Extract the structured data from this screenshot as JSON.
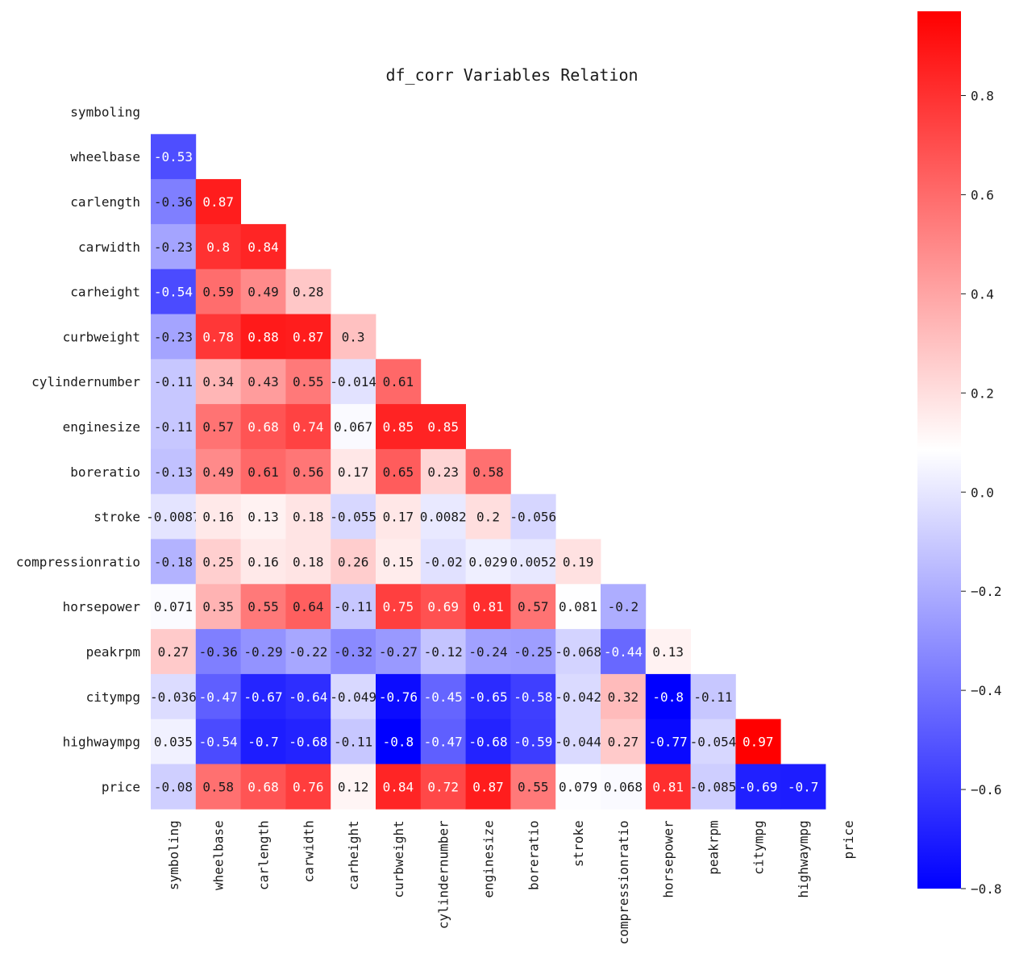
{
  "chart_data": {
    "type": "heatmap",
    "title": "df_corr Variables Relation",
    "variables": [
      "symboling",
      "wheelbase",
      "carlength",
      "carwidth",
      "carheight",
      "curbweight",
      "cylindernumber",
      "enginesize",
      "boreratio",
      "stroke",
      "compressionratio",
      "horsepower",
      "peakrpm",
      "citympg",
      "highwaympg",
      "price"
    ],
    "mask": "upper-triangle-including-diagonal",
    "lower_triangle": [
      [],
      [
        "-0.53"
      ],
      [
        "-0.36",
        "0.87"
      ],
      [
        "-0.23",
        "0.8",
        "0.84"
      ],
      [
        "-0.54",
        "0.59",
        "0.49",
        "0.28"
      ],
      [
        "-0.23",
        "0.78",
        "0.88",
        "0.87",
        "0.3"
      ],
      [
        "-0.11",
        "0.34",
        "0.43",
        "0.55",
        "-0.014",
        "0.61"
      ],
      [
        "-0.11",
        "0.57",
        "0.68",
        "0.74",
        "0.067",
        "0.85",
        "0.85"
      ],
      [
        "-0.13",
        "0.49",
        "0.61",
        "0.56",
        "0.17",
        "0.65",
        "0.23",
        "0.58"
      ],
      [
        "-0.0087",
        "0.16",
        "0.13",
        "0.18",
        "-0.055",
        "0.17",
        "0.0082",
        "0.2",
        "-0.056"
      ],
      [
        "-0.18",
        "0.25",
        "0.16",
        "0.18",
        "0.26",
        "0.15",
        "-0.02",
        "0.029",
        "0.0052",
        "0.19"
      ],
      [
        "0.071",
        "0.35",
        "0.55",
        "0.64",
        "-0.11",
        "0.75",
        "0.69",
        "0.81",
        "0.57",
        "0.081",
        "-0.2"
      ],
      [
        "0.27",
        "-0.36",
        "-0.29",
        "-0.22",
        "-0.32",
        "-0.27",
        "-0.12",
        "-0.24",
        "-0.25",
        "-0.068",
        "-0.44",
        "0.13"
      ],
      [
        "-0.036",
        "-0.47",
        "-0.67",
        "-0.64",
        "-0.049",
        "-0.76",
        "-0.45",
        "-0.65",
        "-0.58",
        "-0.042",
        "0.32",
        "-0.8",
        "-0.11"
      ],
      [
        "0.035",
        "-0.54",
        "-0.7",
        "-0.68",
        "-0.11",
        "-0.8",
        "-0.47",
        "-0.68",
        "-0.59",
        "-0.044",
        "0.27",
        "-0.77",
        "-0.054",
        "0.97"
      ],
      [
        "-0.08",
        "0.58",
        "0.68",
        "0.76",
        "0.12",
        "0.84",
        "0.72",
        "0.87",
        "0.55",
        "0.079",
        "0.068",
        "0.81",
        "-0.085",
        "-0.69",
        "-0.7"
      ]
    ],
    "colormap": "bwr",
    "vmin": -0.8,
    "vmax": 0.97,
    "colorbar": {
      "ticks": [
        "0.8",
        "0.6",
        "0.4",
        "0.2",
        "0.0",
        "−0.2",
        "−0.4",
        "−0.6",
        "−0.8"
      ],
      "tick_values": [
        0.8,
        0.6,
        0.4,
        0.2,
        0.0,
        -0.2,
        -0.4,
        -0.6,
        -0.8
      ],
      "colors": {
        "low": "#0000ff",
        "mid": "#ffffff",
        "high": "#ff0000"
      }
    }
  }
}
